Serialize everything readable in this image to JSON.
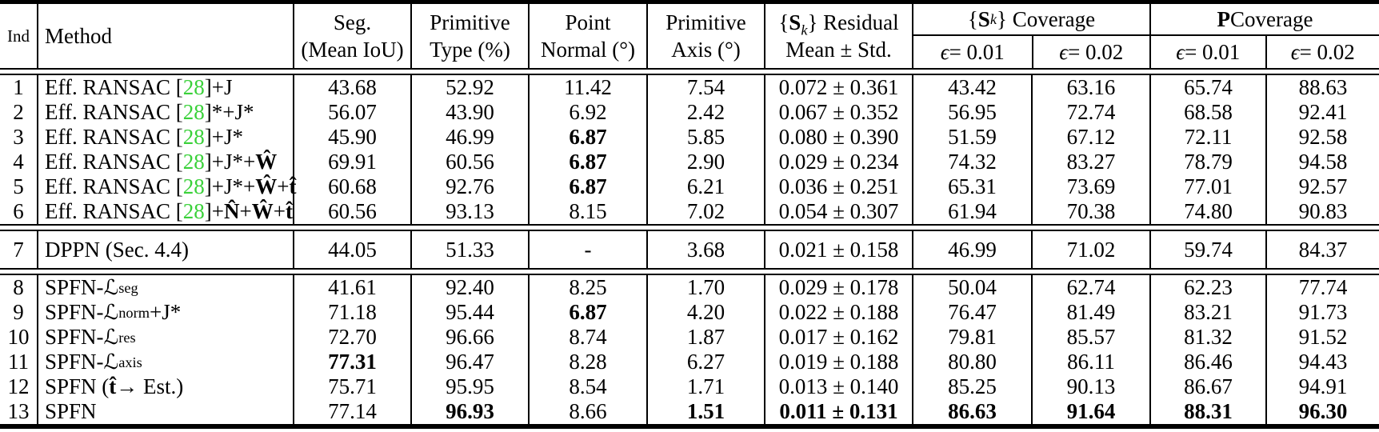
{
  "colors": {
    "citation_green": "#3ad13a",
    "text": "#000000",
    "background": "#ffffff"
  },
  "table": {
    "header": {
      "ind": "Ind",
      "method": "Method",
      "two_line_columns": [
        {
          "key": "seg",
          "l1": [
            {
              "t": "Seg."
            }
          ],
          "l2": [
            {
              "t": "(Mean IoU)"
            }
          ]
        },
        {
          "key": "type",
          "l1": [
            {
              "t": "Primitive"
            }
          ],
          "l2": [
            {
              "t": "Type (%)"
            }
          ]
        },
        {
          "key": "normal",
          "l1": [
            {
              "t": "Point"
            }
          ],
          "l2": [
            {
              "t": "Normal (°)"
            }
          ]
        },
        {
          "key": "axis",
          "l1": [
            {
              "t": "Primitive"
            }
          ],
          "l2": [
            {
              "t": "Axis (°)"
            }
          ]
        },
        {
          "key": "residual",
          "l1": [
            {
              "t": "{"
            },
            {
              "t": "S",
              "c": "bold"
            },
            {
              "t": "k",
              "c": "subk"
            },
            {
              "t": "} Residual"
            }
          ],
          "l2": [
            {
              "t": "Mean ± Std."
            }
          ]
        }
      ],
      "groups": [
        {
          "key": "sk-coverage",
          "label": [
            {
              "t": "{"
            },
            {
              "t": "S",
              "c": "bold"
            },
            {
              "t": "k",
              "c": "subk"
            },
            {
              "t": "} Coverage"
            }
          ],
          "subs": [
            [
              {
                "t": "ϵ",
                "c": "ital"
              },
              {
                "t": " = 0.01"
              }
            ],
            [
              {
                "t": "ϵ",
                "c": "ital"
              },
              {
                "t": " = 0.02"
              }
            ]
          ]
        },
        {
          "key": "p-coverage",
          "label": [
            {
              "t": "P",
              "c": "bold"
            },
            {
              "t": " Coverage"
            }
          ],
          "subs": [
            [
              {
                "t": "ϵ",
                "c": "ital"
              },
              {
                "t": " = 0.01"
              }
            ],
            [
              {
                "t": "ϵ",
                "c": "ital"
              },
              {
                "t": " = 0.02"
              }
            ]
          ]
        }
      ]
    },
    "sections": [
      {
        "rows": [
          {
            "ind": "1",
            "method": [
              {
                "t": "Eff. RANSAC ["
              },
              {
                "t": "28",
                "c": "cite"
              },
              {
                "t": "]+J"
              }
            ],
            "vals": [
              {
                "v": "43.68"
              },
              {
                "v": "52.92"
              },
              {
                "v": "11.42"
              },
              {
                "v": "7.54"
              },
              {
                "v": "0.072 ± 0.361"
              },
              {
                "v": "43.42"
              },
              {
                "v": "63.16"
              },
              {
                "v": "65.74"
              },
              {
                "v": "88.63"
              }
            ]
          },
          {
            "ind": "2",
            "method": [
              {
                "t": "Eff. RANSAC ["
              },
              {
                "t": "28",
                "c": "cite"
              },
              {
                "t": "]*+J*"
              }
            ],
            "vals": [
              {
                "v": "56.07"
              },
              {
                "v": "43.90"
              },
              {
                "v": "6.92"
              },
              {
                "v": "2.42"
              },
              {
                "v": "0.067 ± 0.352"
              },
              {
                "v": "56.95"
              },
              {
                "v": "72.74"
              },
              {
                "v": "68.58"
              },
              {
                "v": "92.41"
              }
            ]
          },
          {
            "ind": "3",
            "method": [
              {
                "t": "Eff. RANSAC ["
              },
              {
                "t": "28",
                "c": "cite"
              },
              {
                "t": "]+J*"
              }
            ],
            "vals": [
              {
                "v": "45.90"
              },
              {
                "v": "46.99"
              },
              {
                "v": "6.87",
                "b": true
              },
              {
                "v": "5.85"
              },
              {
                "v": "0.080 ± 0.390"
              },
              {
                "v": "51.59"
              },
              {
                "v": "67.12"
              },
              {
                "v": "72.11"
              },
              {
                "v": "92.58"
              }
            ]
          },
          {
            "ind": "4",
            "method": [
              {
                "t": "Eff. RANSAC ["
              },
              {
                "t": "28",
                "c": "cite"
              },
              {
                "t": "]+J*+"
              },
              {
                "t": "Ŵ",
                "c": "bold"
              }
            ],
            "vals": [
              {
                "v": "69.91"
              },
              {
                "v": "60.56"
              },
              {
                "v": "6.87",
                "b": true
              },
              {
                "v": "2.90"
              },
              {
                "v": "0.029 ± 0.234"
              },
              {
                "v": "74.32"
              },
              {
                "v": "83.27"
              },
              {
                "v": "78.79"
              },
              {
                "v": "94.58"
              }
            ]
          },
          {
            "ind": "5",
            "method": [
              {
                "t": "Eff. RANSAC ["
              },
              {
                "t": "28",
                "c": "cite"
              },
              {
                "t": "]+J*+"
              },
              {
                "t": "Ŵ",
                "c": "bold"
              },
              {
                "t": "+"
              },
              {
                "t": "t̂",
                "c": "bold"
              }
            ],
            "vals": [
              {
                "v": "60.68"
              },
              {
                "v": "92.76"
              },
              {
                "v": "6.87",
                "b": true
              },
              {
                "v": "6.21"
              },
              {
                "v": "0.036 ± 0.251"
              },
              {
                "v": "65.31"
              },
              {
                "v": "73.69"
              },
              {
                "v": "77.01"
              },
              {
                "v": "92.57"
              }
            ]
          },
          {
            "ind": "6",
            "method": [
              {
                "t": "Eff. RANSAC ["
              },
              {
                "t": "28",
                "c": "cite"
              },
              {
                "t": "]+"
              },
              {
                "t": "N̂",
                "c": "bold"
              },
              {
                "t": "+"
              },
              {
                "t": "Ŵ",
                "c": "bold"
              },
              {
                "t": "+"
              },
              {
                "t": "t̂",
                "c": "bold"
              }
            ],
            "vals": [
              {
                "v": "60.56"
              },
              {
                "v": "93.13"
              },
              {
                "v": "8.15"
              },
              {
                "v": "7.02"
              },
              {
                "v": "0.054 ± 0.307"
              },
              {
                "v": "61.94"
              },
              {
                "v": "70.38"
              },
              {
                "v": "74.80"
              },
              {
                "v": "90.83"
              }
            ]
          }
        ]
      },
      {
        "rows": [
          {
            "ind": "7",
            "method": [
              {
                "t": "DPPN (Sec. 4.4)"
              }
            ],
            "vals": [
              {
                "v": "44.05"
              },
              {
                "v": "51.33"
              },
              {
                "v": "-"
              },
              {
                "v": "3.68"
              },
              {
                "v": "0.021 ± 0.158"
              },
              {
                "v": "46.99"
              },
              {
                "v": "71.02"
              },
              {
                "v": "59.74"
              },
              {
                "v": "84.37"
              }
            ]
          }
        ]
      },
      {
        "rows": [
          {
            "ind": "8",
            "method": [
              {
                "t": "SPFN-"
              },
              {
                "t": "ℒ",
                "c": "cal"
              },
              {
                "t": "seg",
                "c": "sub"
              }
            ],
            "vals": [
              {
                "v": "41.61"
              },
              {
                "v": "92.40"
              },
              {
                "v": "8.25"
              },
              {
                "v": "1.70"
              },
              {
                "v": "0.029 ± 0.178"
              },
              {
                "v": "50.04"
              },
              {
                "v": "62.74"
              },
              {
                "v": "62.23"
              },
              {
                "v": "77.74"
              }
            ]
          },
          {
            "ind": "9",
            "method": [
              {
                "t": "SPFN-"
              },
              {
                "t": "ℒ",
                "c": "cal"
              },
              {
                "t": "norm",
                "c": "sub"
              },
              {
                "t": "+J*"
              }
            ],
            "vals": [
              {
                "v": "71.18"
              },
              {
                "v": "95.44"
              },
              {
                "v": "6.87",
                "b": true
              },
              {
                "v": "4.20"
              },
              {
                "v": "0.022 ± 0.188"
              },
              {
                "v": "76.47"
              },
              {
                "v": "81.49"
              },
              {
                "v": "83.21"
              },
              {
                "v": "91.73"
              }
            ]
          },
          {
            "ind": "10",
            "method": [
              {
                "t": "SPFN-"
              },
              {
                "t": "ℒ",
                "c": "cal"
              },
              {
                "t": "res",
                "c": "sub"
              }
            ],
            "vals": [
              {
                "v": "72.70"
              },
              {
                "v": "96.66"
              },
              {
                "v": "8.74"
              },
              {
                "v": "1.87"
              },
              {
                "v": "0.017 ± 0.162"
              },
              {
                "v": "79.81"
              },
              {
                "v": "85.57"
              },
              {
                "v": "81.32"
              },
              {
                "v": "91.52"
              }
            ]
          },
          {
            "ind": "11",
            "method": [
              {
                "t": "SPFN-"
              },
              {
                "t": "ℒ",
                "c": "cal"
              },
              {
                "t": "axis",
                "c": "sub"
              }
            ],
            "vals": [
              {
                "v": "77.31",
                "b": true
              },
              {
                "v": "96.47"
              },
              {
                "v": "8.28"
              },
              {
                "v": "6.27"
              },
              {
                "v": "0.019 ± 0.188"
              },
              {
                "v": "80.80"
              },
              {
                "v": "86.11"
              },
              {
                "v": "86.46"
              },
              {
                "v": "94.43"
              }
            ]
          },
          {
            "ind": "12",
            "method": [
              {
                "t": "SPFN ("
              },
              {
                "t": "t̂",
                "c": "bold"
              },
              {
                "t": " → Est.)"
              }
            ],
            "vals": [
              {
                "v": "75.71"
              },
              {
                "v": "95.95"
              },
              {
                "v": "8.54"
              },
              {
                "v": "1.71"
              },
              {
                "v": "0.013 ± 0.140"
              },
              {
                "v": "85.25"
              },
              {
                "v": "90.13"
              },
              {
                "v": "86.67"
              },
              {
                "v": "94.91"
              }
            ]
          },
          {
            "ind": "13",
            "method": [
              {
                "t": "SPFN"
              }
            ],
            "vals": [
              {
                "v": "77.14"
              },
              {
                "v": "96.93",
                "b": true
              },
              {
                "v": "8.66"
              },
              {
                "v": "1.51",
                "b": true
              },
              {
                "v": "0.011 ± 0.131",
                "b": true
              },
              {
                "v": "86.63",
                "b": true
              },
              {
                "v": "91.64",
                "b": true
              },
              {
                "v": "88.31",
                "b": true
              },
              {
                "v": "96.30",
                "b": true
              }
            ]
          }
        ]
      }
    ]
  }
}
